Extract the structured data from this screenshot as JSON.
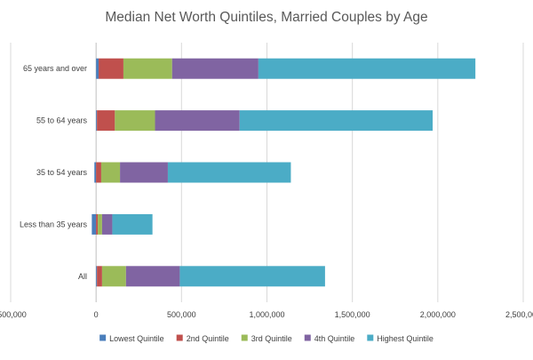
{
  "chart_data": {
    "type": "bar",
    "orientation": "horizontal",
    "stacked": true,
    "title": "Median Net Worth Quintiles, Married Couples by Age",
    "xlabel": "",
    "ylabel": "",
    "categories": [
      "65 years and over",
      "55 to 64 years",
      "35 to 54 years",
      "Less than 35 years",
      "All"
    ],
    "xlim": [
      -500000,
      2500000
    ],
    "x_ticks": [
      -500000,
      0,
      500000,
      1000000,
      1500000,
      2000000,
      2500000
    ],
    "x_tick_labels": [
      "-500,000",
      "0",
      "500,000",
      "1,000,000",
      "1,500,000",
      "2,000,000",
      "2,500,000"
    ],
    "grid": true,
    "legend_position": "bottom",
    "series": [
      {
        "name": "Lowest Quintile",
        "color": "#4a7ebb",
        "values": [
          15000,
          5000,
          -10000,
          -25000,
          5000
        ]
      },
      {
        "name": "2nd  Quintile",
        "color": "#c0504d",
        "values": [
          145000,
          105000,
          30000,
          10000,
          30000
        ]
      },
      {
        "name": "3rd Quintile",
        "color": "#9bbb59",
        "values": [
          285000,
          235000,
          110000,
          25000,
          140000
        ]
      },
      {
        "name": "4th Quintile",
        "color": "#8064a2",
        "values": [
          505000,
          495000,
          280000,
          60000,
          315000
        ]
      },
      {
        "name": "Highest Quintile",
        "color": "#4bacc6",
        "values": [
          1270000,
          1130000,
          720000,
          235000,
          850000
        ]
      }
    ]
  }
}
